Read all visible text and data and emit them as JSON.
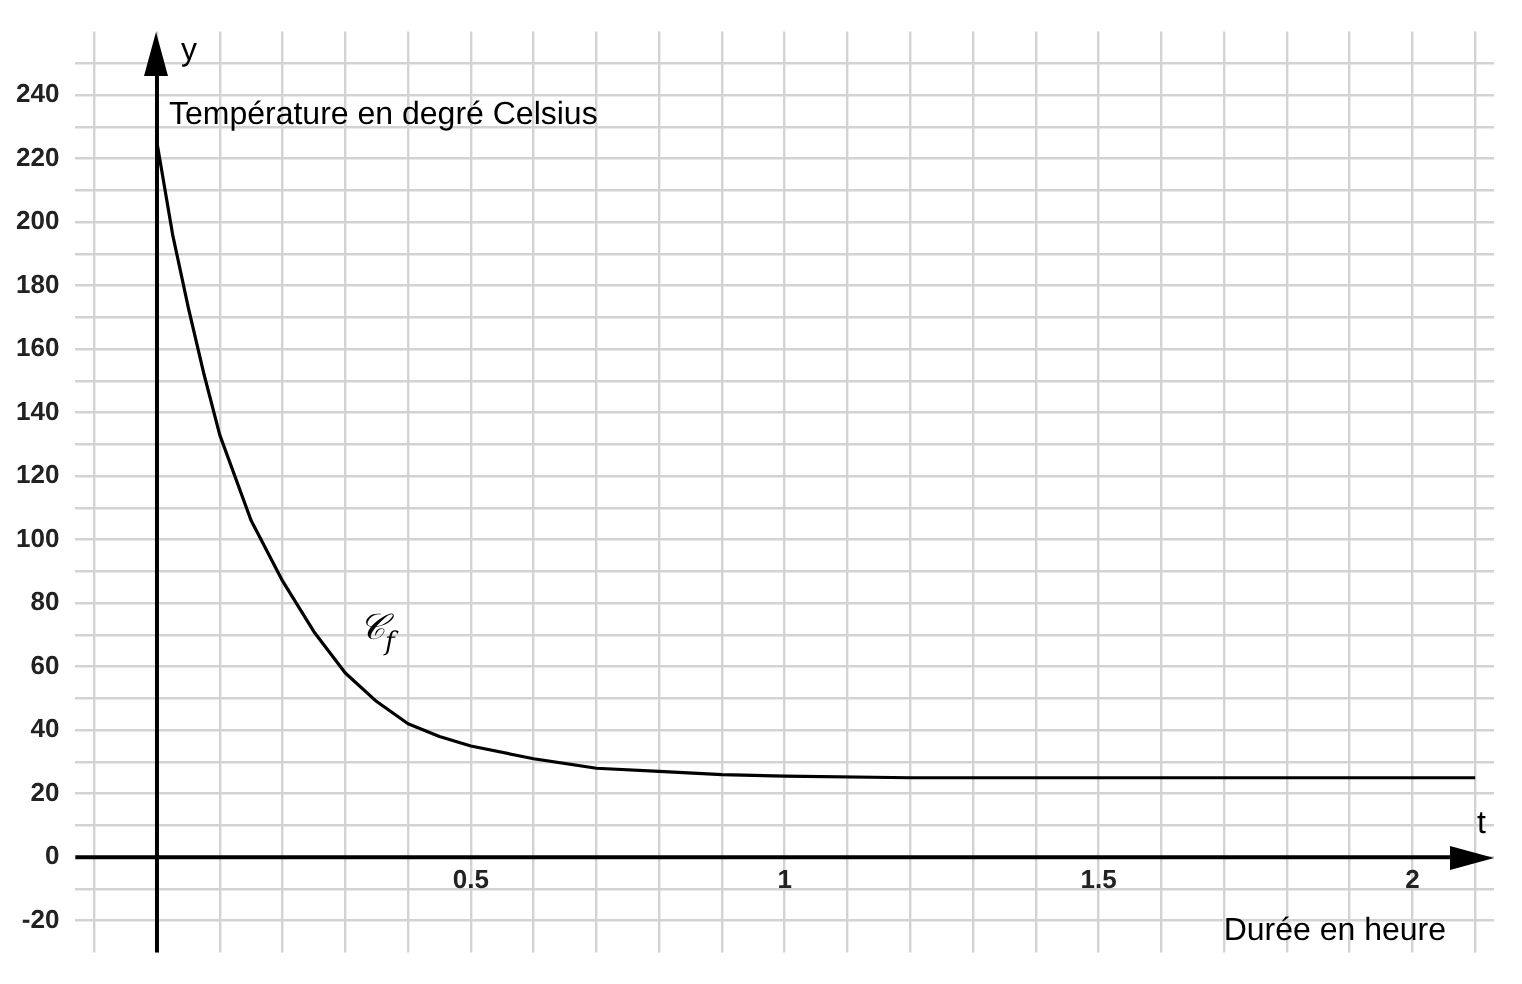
{
  "chart_data": {
    "type": "line",
    "xlabel": "t",
    "ylabel": "y",
    "annotations": [
      "Température en degré Celsius",
      "Durée en heure",
      "𝒞$_{f}$"
    ],
    "x": [
      0,
      0.025,
      0.05,
      0.075,
      0.1,
      0.15,
      0.2,
      0.25,
      0.3,
      0.35,
      0.4,
      0.45,
      0.5,
      0.6,
      0.7,
      0.8,
      0.9,
      1,
      1.2,
      1.5,
      1.8,
      2.1
    ],
    "series": [
      {
        "color": "#000000",
        "values": [
          225,
          196,
          173,
          152,
          133,
          106,
          87,
          71,
          58,
          49,
          42,
          38,
          35,
          31,
          28,
          27,
          26,
          25.5,
          25,
          25,
          25,
          25
        ]
      }
    ],
    "xlim": [
      -0.13,
      2.13
    ],
    "ylim": [
      -30,
      260
    ],
    "xticks": [
      {
        "value": -0.1,
        "label": null
      },
      {
        "value": 0,
        "label": null
      },
      {
        "value": 0.1,
        "label": null
      },
      {
        "value": 0.2,
        "label": null
      },
      {
        "value": 0.3,
        "label": null
      },
      {
        "value": 0.4,
        "label": null
      },
      0.5,
      {
        "value": 0.6,
        "label": null
      },
      {
        "value": 0.7,
        "label": null
      },
      {
        "value": 0.8,
        "label": null
      },
      {
        "value": 0.9,
        "label": null
      },
      1,
      {
        "value": 1.1,
        "label": null
      },
      {
        "value": 1.2,
        "label": null
      },
      {
        "value": 1.3,
        "label": null
      },
      {
        "value": 1.4,
        "label": null
      },
      1.5,
      {
        "value": 1.6,
        "label": null
      },
      {
        "value": 1.7,
        "label": null
      },
      {
        "value": 1.8,
        "label": null
      },
      {
        "value": 1.9,
        "label": null
      },
      2,
      {
        "value": 2.1,
        "label": null
      }
    ],
    "yticks": [
      -20,
      {
        "value": -10,
        "label": null
      },
      0,
      {
        "value": 10,
        "label": null
      },
      20,
      {
        "value": 30,
        "label": null
      },
      40,
      {
        "value": 50,
        "label": null
      },
      60,
      {
        "value": 70,
        "label": null
      },
      80,
      {
        "value": 90,
        "label": null
      },
      100,
      {
        "value": 110,
        "label": null
      },
      120,
      {
        "value": 130,
        "label": null
      },
      140,
      {
        "value": 150,
        "label": null
      },
      160,
      {
        "value": 170,
        "label": null
      },
      180,
      {
        "value": 190,
        "label": null
      },
      200,
      {
        "value": 210,
        "label": null
      },
      220,
      {
        "value": 230,
        "label": null
      },
      240,
      {
        "value": 250,
        "label": null
      }
    ],
    "grid": true,
    "marker": "none",
    "line_style": "solid"
  }
}
